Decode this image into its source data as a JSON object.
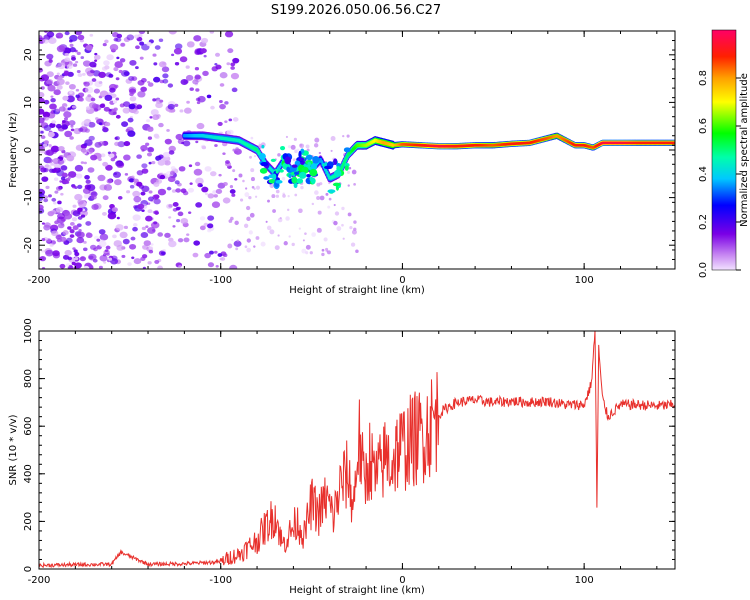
{
  "title": "S199.2026.050.06.56.C27",
  "colors": {
    "trace": "#e8302c",
    "frame": "#000000"
  },
  "chart_data": [
    {
      "type": "heatmap",
      "xlabel": "Height of straight line (km)",
      "ylabel": "Frequency (Hz)",
      "xlim": [
        -200,
        150
      ],
      "ylim": [
        -25,
        25
      ],
      "xticks": [
        -200,
        -100,
        0,
        100
      ],
      "yticks": [
        -20,
        -10,
        0,
        10,
        20
      ],
      "x_tick_labels": [
        "-200",
        "-100",
        "0",
        "100"
      ],
      "y_tick_labels": [
        "-20",
        "-10",
        "0",
        "10",
        "20"
      ],
      "ridge": {
        "x": [
          -120,
          -110,
          -100,
          -90,
          -80,
          -75,
          -70,
          -65,
          -60,
          -55,
          -50,
          -45,
          -40,
          -35,
          -30,
          -25,
          -20,
          -15,
          -10,
          -5,
          0,
          10,
          20,
          30,
          40,
          50,
          60,
          70,
          80,
          85,
          90,
          95,
          100,
          105,
          110,
          120,
          130,
          140,
          150
        ],
        "y": [
          3,
          3,
          2.5,
          2,
          0,
          -3,
          -5,
          -2,
          -5,
          -3,
          -4,
          -2,
          -6,
          -5,
          -1,
          1,
          1,
          2,
          1.5,
          1,
          1.2,
          1.0,
          0.8,
          0.8,
          1.0,
          1.0,
          1.3,
          1.5,
          2.5,
          3,
          2,
          1,
          1,
          0.5,
          1.5,
          1.5,
          1.5,
          1.5,
          1.5
        ],
        "amplitude": [
          0.35,
          0.4,
          0.45,
          0.45,
          0.5,
          0.4,
          0.45,
          0.35,
          0.5,
          0.4,
          0.45,
          0.35,
          0.45,
          0.5,
          0.5,
          0.6,
          0.65,
          0.7,
          0.8,
          0.75,
          0.85,
          0.9,
          0.95,
          0.9,
          0.9,
          0.85,
          0.9,
          0.9,
          0.85,
          0.8,
          0.85,
          0.9,
          0.9,
          0.85,
          0.95,
          0.95,
          0.9,
          0.9,
          0.9
        ]
      },
      "colorbar": {
        "label": "Normalized spectral amplitude",
        "range": [
          0,
          1
        ],
        "ticks": [
          0.0,
          0.2,
          0.4,
          0.6,
          0.8
        ],
        "tick_labels": [
          "0.0",
          "0.2",
          "0.4",
          "0.6",
          "0.8"
        ]
      }
    },
    {
      "type": "line",
      "xlabel": "Height of straight line (km)",
      "ylabel": "SNR (10 * v/v)",
      "xlim": [
        -200,
        150
      ],
      "ylim": [
        0,
        1000
      ],
      "xticks": [
        -200,
        -100,
        0,
        100
      ],
      "yticks": [
        0,
        200,
        400,
        600,
        800,
        1000
      ],
      "x_tick_labels": [
        "-200",
        "-100",
        "0",
        "100"
      ],
      "y_tick_labels": [
        "0",
        "200",
        "400",
        "600",
        "800",
        "1000"
      ],
      "series": [
        {
          "name": "SNR",
          "x": [
            -200,
            -180,
            -160,
            -155,
            -140,
            -120,
            -100,
            -95,
            -90,
            -85,
            -80,
            -75,
            -70,
            -66,
            -62,
            -58,
            -54,
            -50,
            -46,
            -42,
            -38,
            -34,
            -30,
            -27,
            -24,
            -21,
            -18,
            -15,
            -12,
            -9,
            -6,
            -3,
            0,
            5,
            10,
            15,
            20,
            25,
            30,
            40,
            50,
            60,
            70,
            80,
            90,
            100,
            104,
            106,
            107,
            108,
            110,
            113,
            120,
            130,
            140,
            150
          ],
          "y": [
            15,
            18,
            20,
            70,
            20,
            22,
            30,
            50,
            60,
            90,
            120,
            180,
            230,
            100,
            150,
            200,
            140,
            280,
            230,
            300,
            220,
            350,
            400,
            260,
            560,
            350,
            470,
            380,
            420,
            480,
            440,
            500,
            510,
            540,
            560,
            600,
            650,
            680,
            700,
            710,
            700,
            705,
            700,
            705,
            690,
            690,
            780,
            1000,
            260,
            930,
            720,
            640,
            690,
            690,
            685,
            690
          ]
        }
      ]
    }
  ]
}
